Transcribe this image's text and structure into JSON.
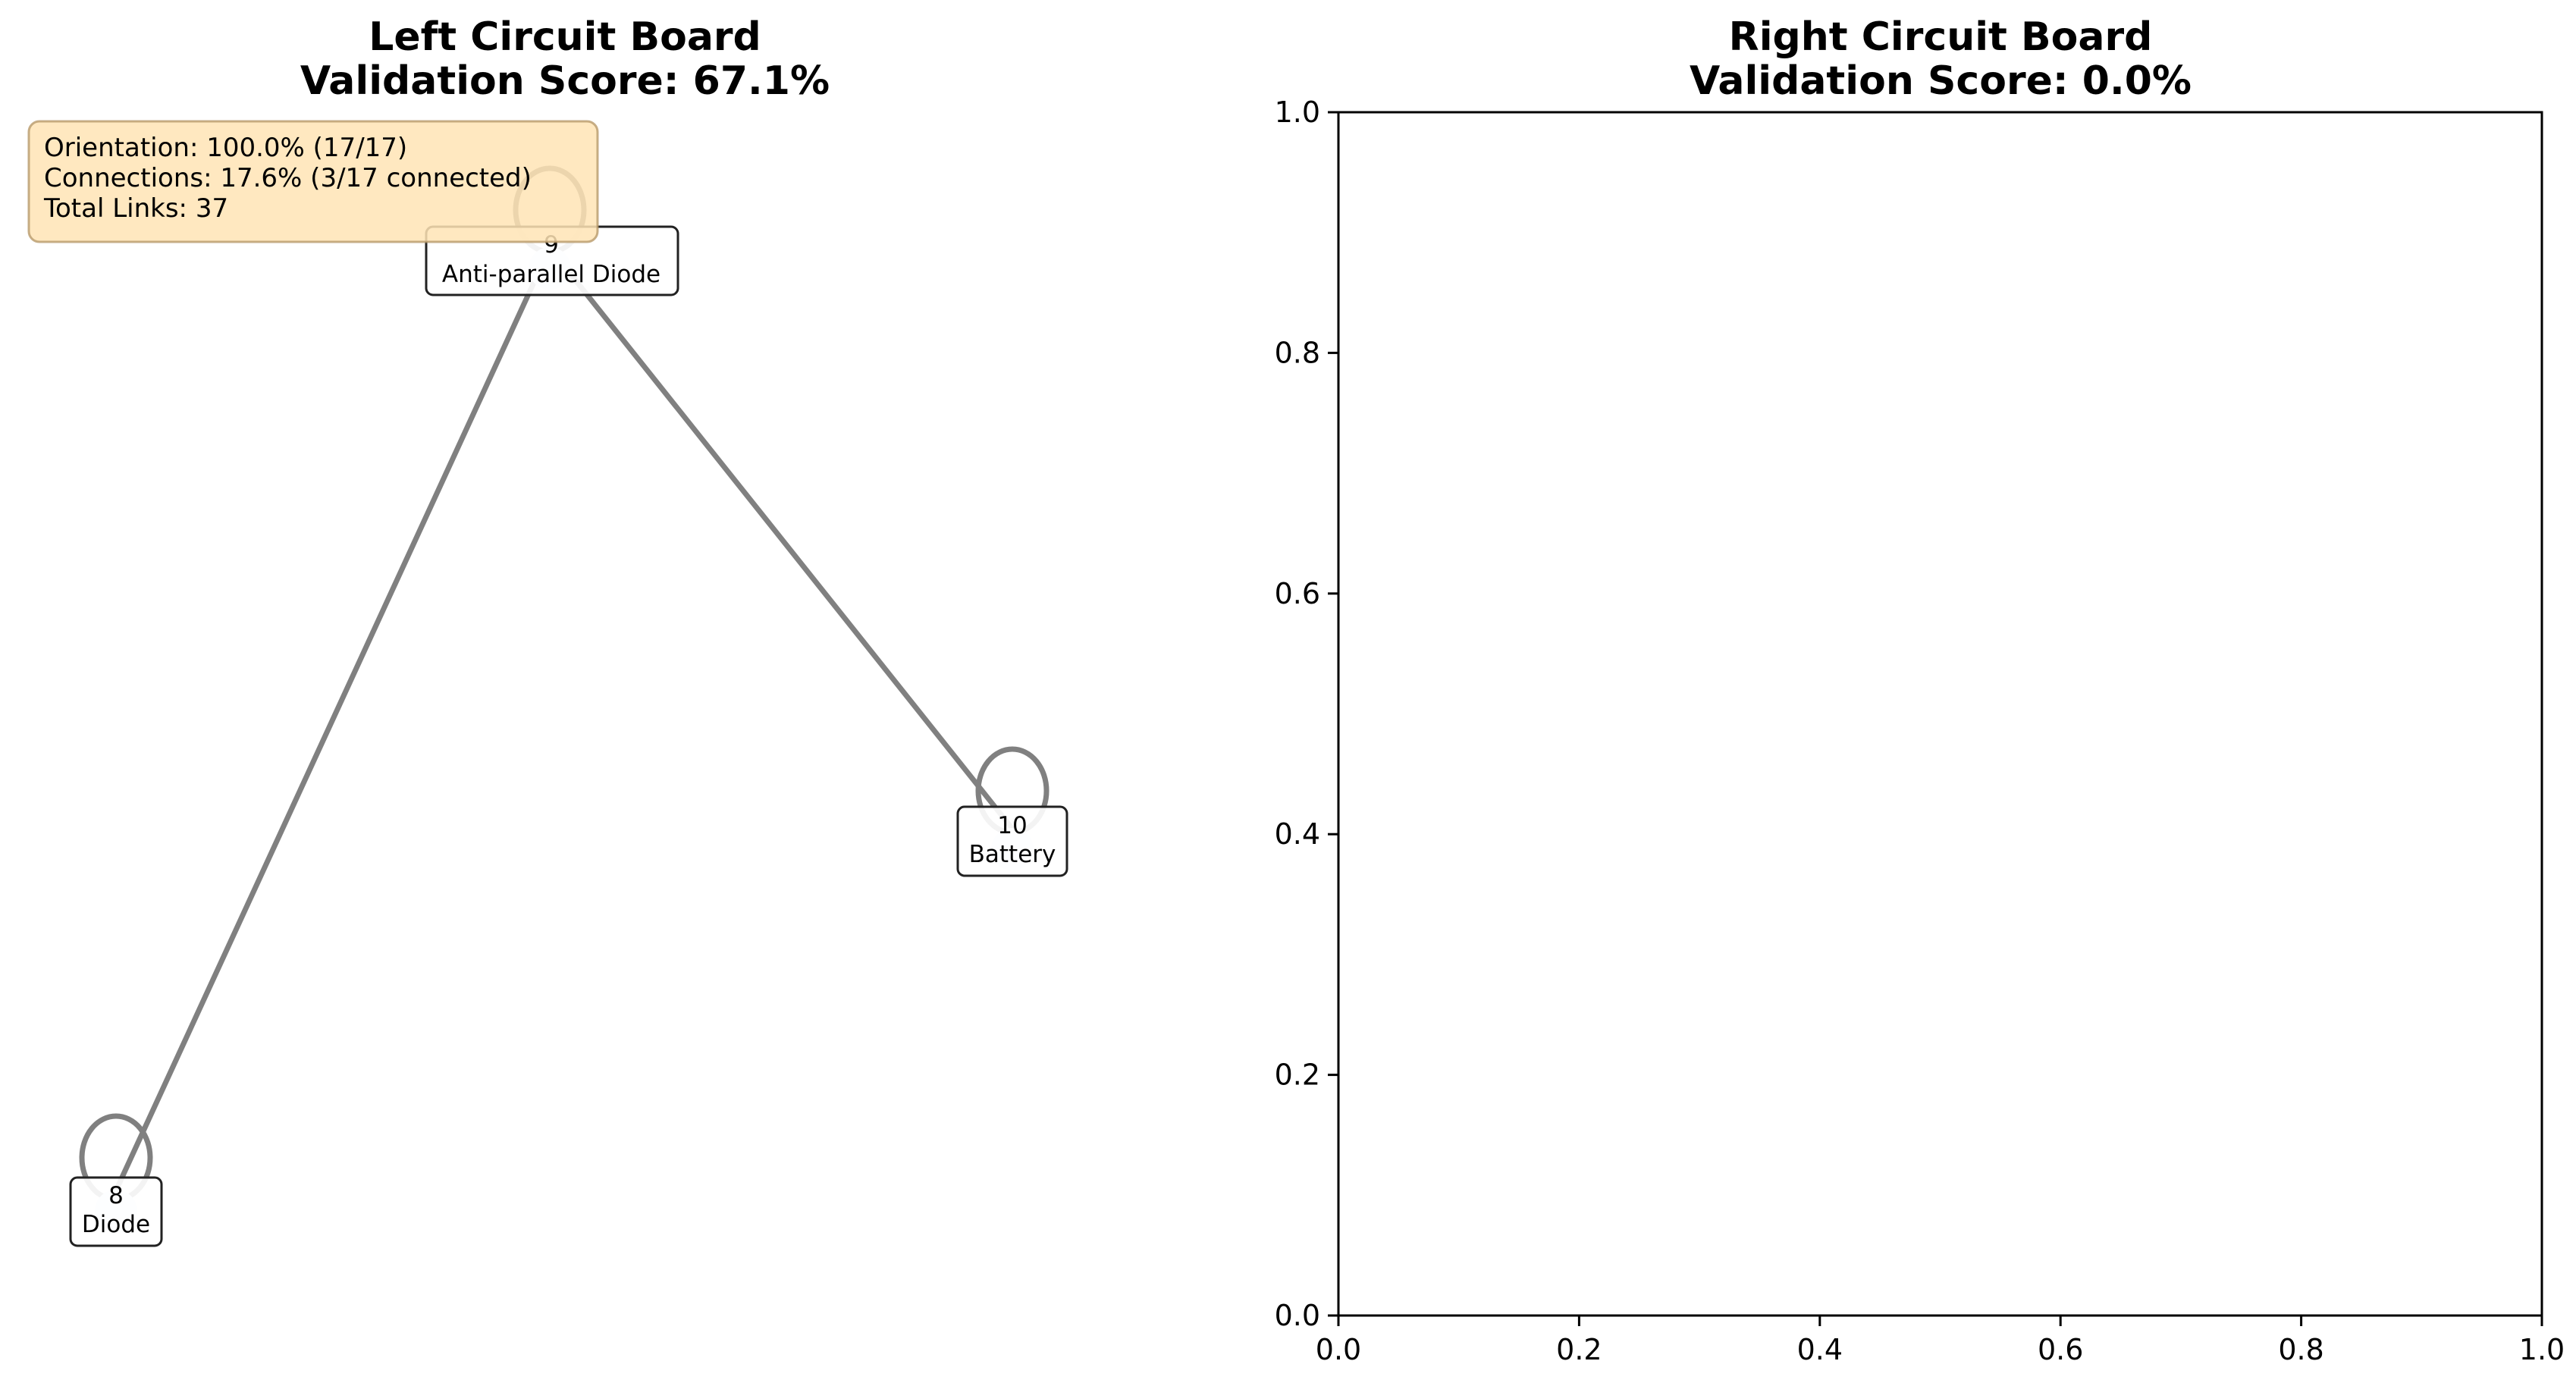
{
  "left_panel": {
    "title_line1": "Left Circuit Board",
    "title_line2": "Validation Score: 67.1%",
    "stats": {
      "orientation": "Orientation: 100.0% (17/17)",
      "connections": "Connections: 17.6% (3/17 connected)",
      "total_links": "Total Links: 37"
    },
    "nodes": [
      {
        "id": "8",
        "label": "Diode"
      },
      {
        "id": "9",
        "label": "Anti-parallel Diode"
      },
      {
        "id": "10",
        "label": "Battery"
      }
    ]
  },
  "right_panel": {
    "title_line1": "Right Circuit Board",
    "title_line2": "Validation Score: 0.0%"
  },
  "chart_data": {
    "type": "scatter",
    "title": "Right Circuit Board\nValidation Score: 0.0%",
    "xlabel": "",
    "ylabel": "",
    "xlim": [
      0.0,
      1.0
    ],
    "ylim": [
      0.0,
      1.0
    ],
    "x_ticks": [
      "0.0",
      "0.2",
      "0.4",
      "0.6",
      "0.8",
      "1.0"
    ],
    "y_ticks": [
      "0.0",
      "0.2",
      "0.4",
      "0.6",
      "0.8",
      "1.0"
    ],
    "series": [],
    "grid": false
  },
  "colors": {
    "edge": "#808080",
    "stats_box_fill": "#ffe4b5",
    "stats_box_border": "#c8a97a",
    "node_box_fill": "#ffffff",
    "node_box_border": "#222222",
    "node_marker": "#e8f1f8"
  }
}
